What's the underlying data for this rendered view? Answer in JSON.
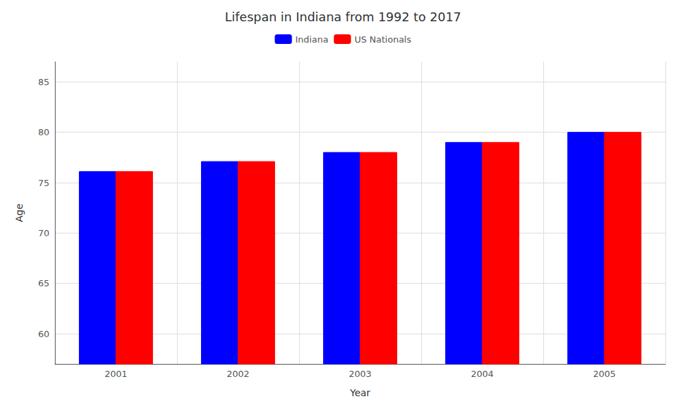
{
  "chart_data": {
    "type": "bar",
    "title": "Lifespan in Indiana from 1992 to 2017",
    "xlabel": "Year",
    "ylabel": "Age",
    "categories": [
      "2001",
      "2002",
      "2003",
      "2004",
      "2005"
    ],
    "series": [
      {
        "name": "Indiana",
        "color": "#0000ff",
        "values": [
          76.1,
          77.1,
          78.0,
          79.0,
          80.0
        ]
      },
      {
        "name": "US Nationals",
        "color": "#ff0000",
        "values": [
          76.1,
          77.1,
          78.0,
          79.0,
          80.0
        ]
      }
    ],
    "ylim": [
      57,
      87
    ],
    "yticks": [
      60,
      65,
      70,
      75,
      80,
      85
    ],
    "grid": true,
    "legend": "upper center"
  }
}
